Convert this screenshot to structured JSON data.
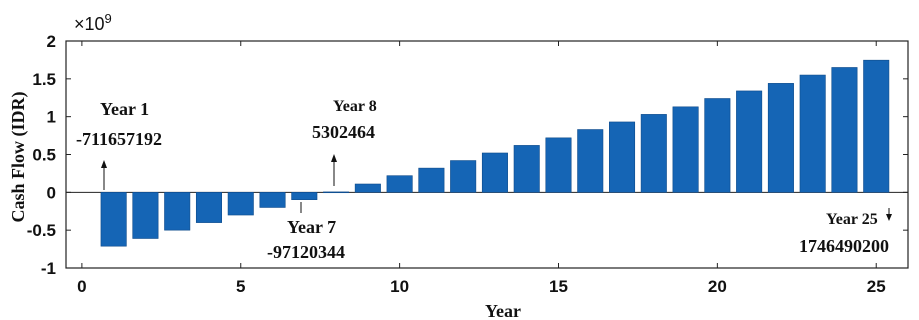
{
  "chart_data": {
    "type": "bar",
    "xlabel": "Year",
    "ylabel": "Cash Flow (IDR)",
    "scale_label": "×10",
    "scale_exponent": "9",
    "xlim": [
      -0.5,
      26
    ],
    "ylim": [
      -1,
      2
    ],
    "x_ticks": [
      0,
      5,
      10,
      15,
      20,
      25
    ],
    "y_ticks": [
      -1,
      -0.5,
      0,
      0.5,
      1,
      1.5,
      2
    ],
    "y_tick_labels": [
      "-1",
      "-0.5",
      "0",
      "0.5",
      "1",
      "1.5",
      "2"
    ],
    "bar_color": "#1565b5",
    "grid": false,
    "categories": [
      1,
      2,
      3,
      4,
      5,
      6,
      7,
      8,
      9,
      10,
      11,
      12,
      13,
      14,
      15,
      16,
      17,
      18,
      19,
      20,
      21,
      22,
      23,
      24,
      25
    ],
    "values": [
      -0.7117,
      -0.61,
      -0.5,
      -0.4,
      -0.3,
      -0.2,
      -0.0971,
      0.0053,
      0.11,
      0.22,
      0.32,
      0.42,
      0.52,
      0.62,
      0.72,
      0.83,
      0.93,
      1.03,
      1.13,
      1.24,
      1.34,
      1.44,
      1.55,
      1.65,
      1.7465
    ],
    "annotations": [
      {
        "label": "Year 1",
        "value": "-711657192",
        "year": 1
      },
      {
        "label": "Year 7",
        "value": "-97120344",
        "year": 7
      },
      {
        "label": "Year 8",
        "value": "5302464",
        "year": 8
      },
      {
        "label": "Year 25",
        "value": "1746490200",
        "year": 25
      }
    ]
  }
}
